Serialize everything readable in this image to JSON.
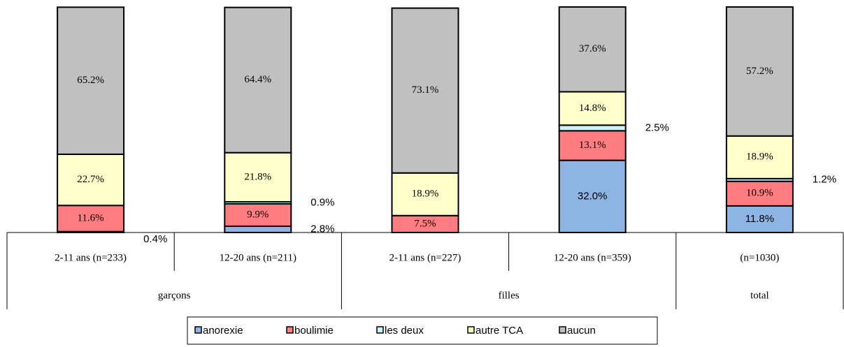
{
  "chart_data": {
    "type": "stacked_bar",
    "groups": [
      {
        "name": "garçons",
        "categories": [
          "2-11 ans (n=233)",
          "12-20 ans (n=211)"
        ]
      },
      {
        "name": "filles",
        "categories": [
          "2-11 ans (n=227)",
          "12-20 ans (n=359)"
        ]
      },
      {
        "name": "total",
        "categories": [
          "(n=1030)"
        ]
      }
    ],
    "ylim": [
      0,
      100
    ],
    "series": [
      {
        "name": "anorexie",
        "color": "#8db4e2",
        "values": [
          0.4,
          2.8,
          0,
          32.0,
          11.8
        ],
        "value_labels": [
          "0.4%",
          "2.8%",
          null,
          "32.0%",
          "11.8%"
        ]
      },
      {
        "name": "boulimie",
        "color": "#ff7c80",
        "values": [
          11.6,
          9.9,
          7.5,
          13.1,
          10.9
        ],
        "value_labels": [
          "11.6%",
          "9.9%",
          "7.5%",
          "13.1%",
          "10.9%"
        ]
      },
      {
        "name": "les deux",
        "color": "#ccf2f7",
        "values": [
          0,
          0.9,
          0,
          2.5,
          1.2
        ],
        "value_labels": [
          null,
          "0.9%",
          null,
          "2.5%",
          "1.2%"
        ]
      },
      {
        "name": "autre TCA",
        "color": "#ffffcc",
        "values": [
          22.7,
          21.8,
          18.9,
          14.8,
          18.9
        ],
        "value_labels": [
          "22.7%",
          "21.8%",
          "18.9%",
          "14.8%",
          "18.9%"
        ]
      },
      {
        "name": "aucun",
        "color": "#c0c0c0",
        "values": [
          65.2,
          64.4,
          73.1,
          37.6,
          57.2
        ],
        "value_labels": [
          "65.2%",
          "64.4%",
          "73.1%",
          "37.6%",
          "57.2%"
        ]
      }
    ]
  }
}
